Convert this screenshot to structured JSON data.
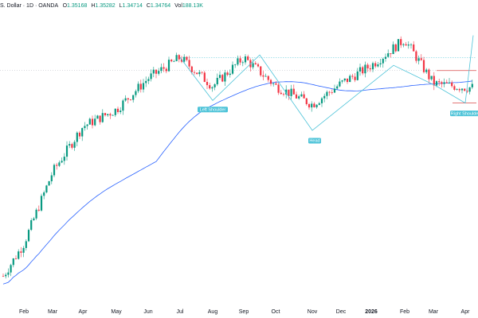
{
  "legend": {
    "symbol": "S. Dollar · 1D · OANDA",
    "o_label": "O",
    "o_value": "1.35168",
    "h_label": "H",
    "h_value": "1.35282",
    "l_label": "L",
    "l_value": "1.34714",
    "c_label": "C",
    "c_value": "1.34764",
    "vol_label": "Vol",
    "vol_value": "188.13K"
  },
  "colors": {
    "up": "#089981",
    "down": "#f23645",
    "ma": "#2962ff",
    "pattern": "#4dc3d8",
    "neckline": "#d84a4a"
  },
  "chart_data": {
    "type": "candlestick",
    "title": "",
    "x_axis_labels": [
      "Feb",
      "Mar",
      "Apr",
      "May",
      "Jun",
      "Jul",
      "Aug",
      "Sep",
      "Oct",
      "Nov",
      "Dec",
      "2026",
      "Feb",
      "Mar",
      "Apr"
    ],
    "y_axis_labels": [],
    "annotations": [
      "Left Shoulder",
      "Head",
      "Right Shoulder"
    ],
    "pattern": "head-and-shoulders",
    "price_trend": [
      {
        "month": "Feb",
        "close": 1.235
      },
      {
        "month": "Mar",
        "close": 1.29
      },
      {
        "month": "Apr",
        "close": 1.325
      },
      {
        "month": "May",
        "close": 1.338
      },
      {
        "month": "Jun",
        "close": 1.362
      },
      {
        "month": "Jul",
        "close": 1.378
      },
      {
        "month": "Aug",
        "close": 1.356
      },
      {
        "month": "Sep",
        "close": 1.378
      },
      {
        "month": "Oct",
        "close": 1.356
      },
      {
        "month": "Nov",
        "close": 1.342
      },
      {
        "month": "Dec",
        "close": 1.358
      },
      {
        "month": "2026",
        "close": 1.372
      },
      {
        "month": "Feb",
        "close": 1.392
      },
      {
        "month": "Mar",
        "close": 1.358
      },
      {
        "month": "Apr",
        "close": 1.355
      }
    ]
  }
}
